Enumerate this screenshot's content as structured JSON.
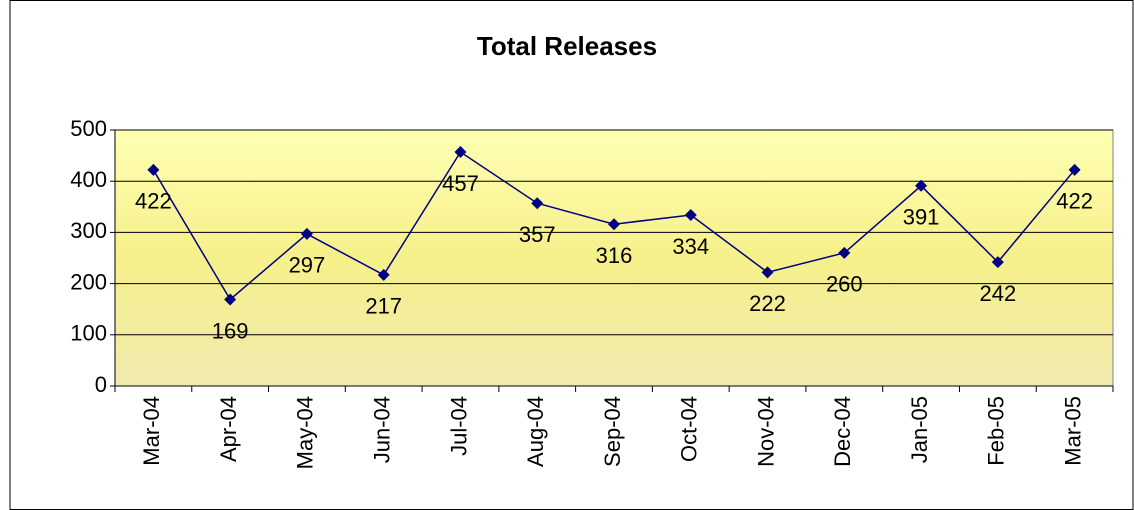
{
  "chart_data": {
    "type": "line",
    "title": "Total Releases",
    "categories": [
      "Mar-04",
      "Apr-04",
      "May-04",
      "Jun-04",
      "Jul-04",
      "Aug-04",
      "Sep-04",
      "Oct-04",
      "Nov-04",
      "Dec-04",
      "Jan-05",
      "Feb-05",
      "Mar-05"
    ],
    "series": [
      {
        "name": "Total Releases",
        "color": "#000080",
        "values": [
          422,
          169,
          297,
          217,
          457,
          357,
          316,
          334,
          222,
          260,
          391,
          242,
          422
        ]
      }
    ],
    "ylim": [
      0,
      500
    ],
    "yticks": [
      0,
      100,
      200,
      300,
      400,
      500
    ],
    "grid": true
  }
}
